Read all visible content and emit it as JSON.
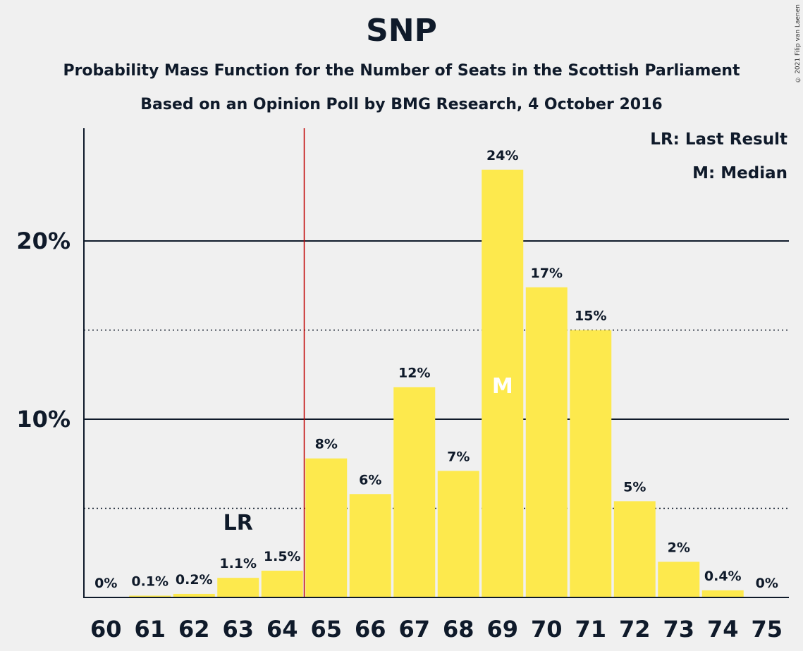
{
  "title": "SNP",
  "subtitle_line1": "Probability Mass Function for the Number of Seats in the Scottish Parliament",
  "subtitle_line2": "Based on an Opinion Poll by BMG Research, 4 October 2016",
  "copyright": "© 2021 Filip van Laenen",
  "legend": {
    "last_result": "LR: Last Result",
    "median": "M: Median"
  },
  "colors": {
    "bar": "#fde94d",
    "majority_line": "#c00000",
    "text": "#0f1a2a",
    "background": "#f0f0f0"
  },
  "chart_data": {
    "type": "bar",
    "categories": [
      "60",
      "61",
      "62",
      "63",
      "64",
      "65",
      "66",
      "67",
      "68",
      "69",
      "70",
      "71",
      "72",
      "73",
      "74",
      "75"
    ],
    "values": [
      0,
      0.1,
      0.2,
      1.1,
      1.5,
      7.8,
      5.8,
      11.8,
      7.1,
      24.0,
      17.4,
      15.0,
      5.4,
      2.0,
      0.4,
      0
    ],
    "labels": [
      "0%",
      "0.1%",
      "0.2%",
      "1.1%",
      "1.5%",
      "8%",
      "6%",
      "12%",
      "7%",
      "24%",
      "17%",
      "15%",
      "5%",
      "2%",
      "0.4%",
      "0%"
    ],
    "ylim": [
      0,
      26
    ],
    "y_ticks": [
      {
        "value": 10,
        "label": "10%"
      },
      {
        "value": 20,
        "label": "20%"
      }
    ],
    "minor_gridlines": [
      5,
      15
    ],
    "last_result": {
      "category": "63",
      "label": "LR"
    },
    "median": {
      "category": "69",
      "label": "M"
    },
    "majority_line_at": 64.5,
    "legend_position": "top-right"
  }
}
